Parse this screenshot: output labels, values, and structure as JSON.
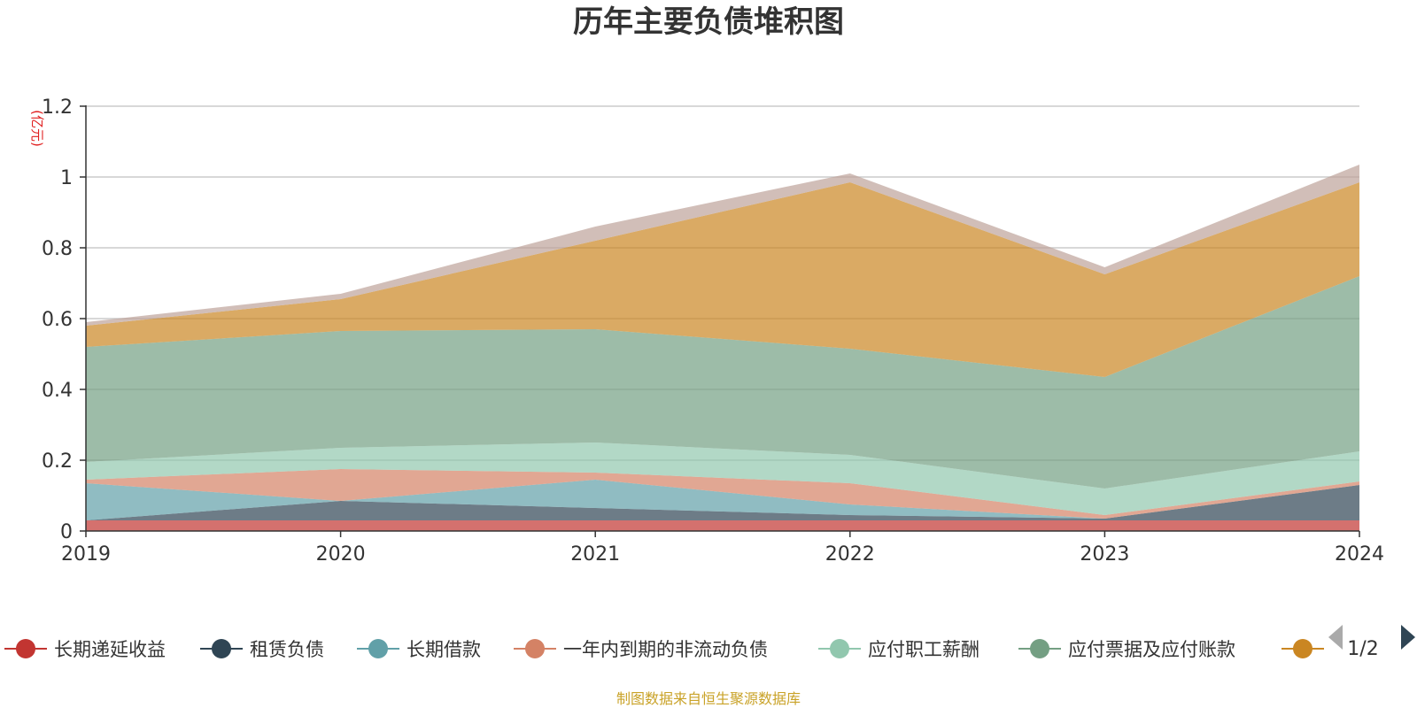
{
  "chart_data": {
    "type": "area",
    "stacked": true,
    "title": "历年主要负债堆积图",
    "ylabel": "(亿元)",
    "xlabel": "",
    "x": [
      "2019",
      "2020",
      "2021",
      "2022",
      "2023",
      "2024"
    ],
    "ylim": [
      0,
      1.2
    ],
    "yticks": [
      0,
      0.2,
      0.4,
      0.6,
      0.8,
      1,
      1.2
    ],
    "ytick_labels": [
      "0",
      "0.2",
      "0.4",
      "0.6",
      "0.8",
      "1",
      "1.2"
    ],
    "grid": true,
    "legend_position": "bottom",
    "series": [
      {
        "name": "长期递延收益",
        "color": "#c23531",
        "values": [
          0.03,
          0.03,
          0.03,
          0.03,
          0.03,
          0.03
        ]
      },
      {
        "name": "租赁负债",
        "color": "#2f4554",
        "values": [
          0.0,
          0.055,
          0.035,
          0.015,
          0.005,
          0.1
        ]
      },
      {
        "name": "长期借款",
        "color": "#61a0a8",
        "values": [
          0.105,
          0.0,
          0.08,
          0.03,
          0.0,
          0.0
        ]
      },
      {
        "name": "一年内到期的非流动负债",
        "color": "#d48265",
        "values": [
          0.01,
          0.09,
          0.02,
          0.06,
          0.01,
          0.01
        ]
      },
      {
        "name": "应付职工薪酬",
        "color": "#91c7ae",
        "values": [
          0.05,
          0.06,
          0.085,
          0.08,
          0.075,
          0.085
        ]
      },
      {
        "name": "应付票据及应付账款",
        "color": "#749f83",
        "values": [
          0.325,
          0.33,
          0.32,
          0.3,
          0.315,
          0.495
        ]
      },
      {
        "name": "",
        "color": "#ca8622",
        "values": [
          0.06,
          0.09,
          0.25,
          0.47,
          0.29,
          0.265
        ]
      },
      {
        "name": "",
        "color": "#bda29a",
        "values": [
          0.01,
          0.015,
          0.04,
          0.025,
          0.02,
          0.05
        ]
      }
    ]
  },
  "legend": {
    "page_indicator": "1/2",
    "prev_icon": "triangle-left-icon",
    "next_icon": "triangle-right-icon"
  },
  "footer": {
    "source_text": "制图数据来自恒生聚源数据库",
    "source_color": "#c9a227"
  },
  "colors": {
    "unit_label": "#e02020",
    "axis": "#333333",
    "grid": "#cccccc",
    "pager_disabled": "#aaaaaa",
    "pager_active": "#2f4554"
  }
}
